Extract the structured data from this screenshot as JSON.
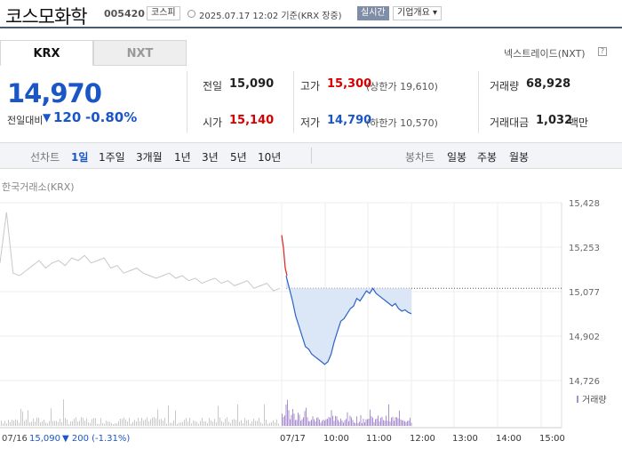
{
  "header": {
    "name": "코스모화학",
    "code": "005420",
    "market_badge": "코스피",
    "time": "2025.07.17 12:02 기준(KRX 장중)",
    "realtime_label": "실시간",
    "corp_label": "기업개요 ▾"
  },
  "tabs": {
    "krx": "KRX",
    "nxt": "NXT"
  },
  "nxt_link": "넥스트레이드(NXT)",
  "nxt_help": "?",
  "price": {
    "current": "14,970",
    "change_label": "전일대비",
    "change_arrow": "▼",
    "change_value": "120",
    "change_pct": "-0.80%"
  },
  "stats": {
    "prev_label": "전일",
    "prev_value": "15,090",
    "open_label": "시가",
    "open_value": "15,140",
    "high_label": "고가",
    "high_value": "15,300",
    "upper_limit": "(상한가 19,610)",
    "low_label": "저가",
    "low_value": "14,790",
    "lower_limit": "(하한가 10,570)",
    "volume_label": "거래량",
    "volume_value": "68,928",
    "amount_label": "거래대금",
    "amount_value": "1,032",
    "amount_unit": "백만"
  },
  "period_bar": {
    "line_label": "선차트",
    "line_items": [
      "1일",
      "1주일",
      "3개월",
      "1년",
      "3년",
      "5년",
      "10년"
    ],
    "active_index": 0,
    "candle_label": "봉차트",
    "candle_items": [
      "일봉",
      "주봉",
      "월봉"
    ]
  },
  "source_label": "한국거래소(KRX)",
  "chart_data": {
    "type": "line",
    "y_ticks": [
      "15,428",
      "15,253",
      "15,077",
      "14,902",
      "14,726"
    ],
    "ylim": [
      14726,
      15428
    ],
    "reference_price": 15090,
    "x_ticks": [
      "07/17",
      "10:00",
      "11:00",
      "12:00",
      "13:00",
      "14:00",
      "15:00"
    ],
    "volume_label": "거래량",
    "prev_day": {
      "label_date": "07/16",
      "label_price": "15,090",
      "label_change": "▼ 200 (-1.31%)",
      "points": [
        15190,
        15390,
        15150,
        15140,
        15160,
        15180,
        15200,
        15170,
        15190,
        15200,
        15180,
        15210,
        15200,
        15220,
        15190,
        15200,
        15210,
        15170,
        15180,
        15150,
        15160,
        15170,
        15150,
        15140,
        15130,
        15140,
        15150,
        15130,
        15140,
        15120,
        15130,
        15110,
        15120,
        15130,
        15110,
        15120,
        15100,
        15110,
        15120,
        15090,
        15100,
        15110,
        15080,
        15090
      ]
    },
    "today": {
      "open_phase": [
        15300,
        15250,
        15170,
        15140
      ],
      "points": [
        15140,
        15090,
        15040,
        14980,
        14940,
        14900,
        14860,
        14850,
        14830,
        14820,
        14810,
        14800,
        14790,
        14800,
        14830,
        14880,
        14920,
        14960,
        14970,
        14990,
        15010,
        15020,
        15050,
        15040,
        15060,
        15080,
        15070,
        15090,
        15070,
        15060,
        15050,
        15040,
        15030,
        15020,
        15030,
        15010,
        15000,
        15005,
        14995,
        14990
      ]
    }
  }
}
